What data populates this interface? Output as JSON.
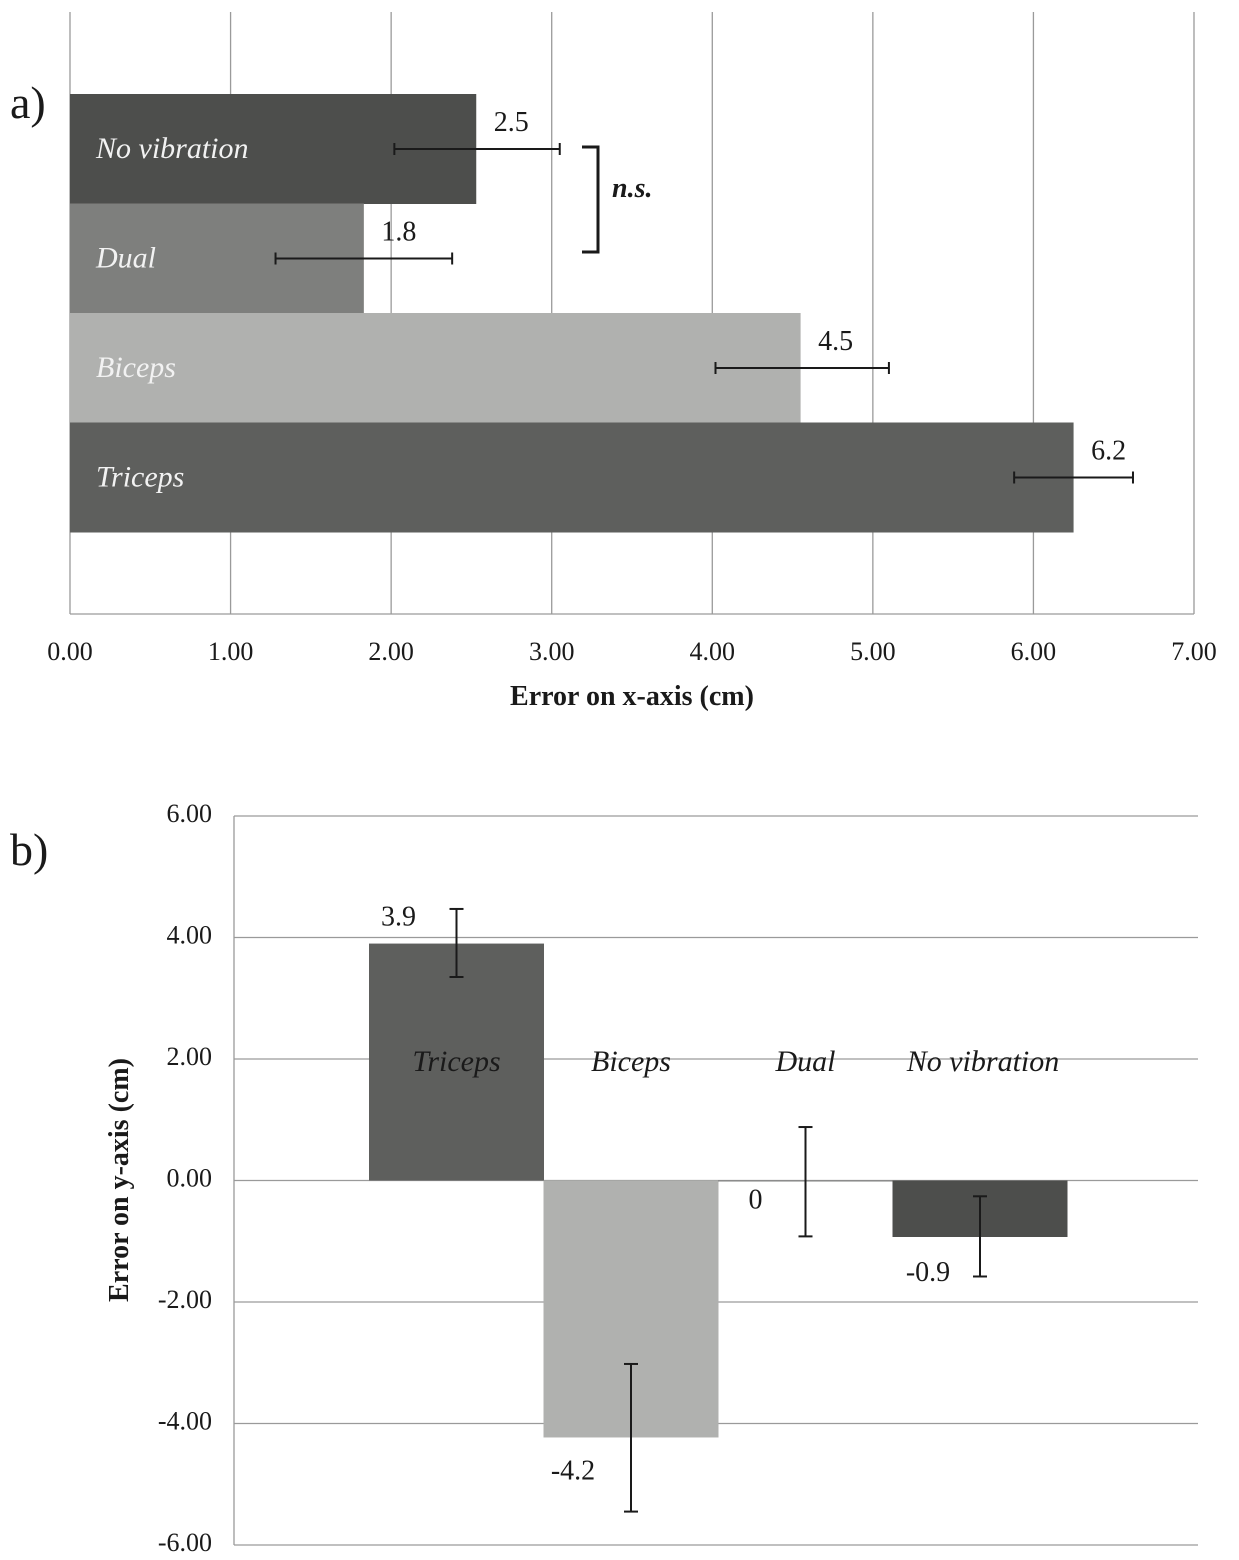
{
  "chart_data": [
    {
      "panel_label": "a)",
      "type": "bar",
      "orientation": "horizontal",
      "xlabel": "Error  on x-axis (cm)",
      "ylabel": "",
      "xlim": [
        0,
        7
      ],
      "tick_values": [
        0,
        1,
        2,
        3,
        4,
        5,
        6,
        7
      ],
      "tick_labels": [
        "0.00",
        "1.00",
        "2.00",
        "3.00",
        "4.00",
        "5.00",
        "6.00",
        "7.00"
      ],
      "grid": true,
      "categories": [
        "No vibration",
        "Dual",
        "Biceps",
        "Triceps"
      ],
      "values": [
        2.53,
        1.83,
        4.55,
        6.25
      ],
      "data_labels": [
        "2.5",
        "1.8",
        "4.5",
        "6.2"
      ],
      "error_low": [
        2.02,
        1.28,
        4.02,
        5.88
      ],
      "error_high": [
        3.05,
        2.38,
        5.1,
        6.62
      ],
      "colors": [
        "#4d4e4c",
        "#7e7f7d",
        "#b0b1af",
        "#5e5f5d"
      ],
      "annotation": "n.s."
    },
    {
      "panel_label": "b)",
      "type": "bar",
      "orientation": "vertical",
      "xlabel": "",
      "ylabel": "Error  on y-axis (cm)",
      "ylim": [
        -6,
        6
      ],
      "tick_values": [
        6,
        4,
        2,
        0,
        -2,
        -4,
        -6
      ],
      "tick_labels": [
        "6.00",
        "4.00",
        "2.00",
        "0.00",
        "-2.00",
        "-4.00",
        "-6.00"
      ],
      "grid": true,
      "categories": [
        "Triceps",
        "Biceps",
        "Dual",
        "No vibration"
      ],
      "values": [
        3.9,
        -4.23,
        0.0,
        -0.93
      ],
      "data_labels": [
        "3.9",
        "-4.2",
        "0",
        "-0.9"
      ],
      "error_low": [
        3.35,
        -5.45,
        -0.92,
        -1.58
      ],
      "error_high": [
        4.47,
        -3.02,
        0.88,
        -0.26
      ],
      "colors": [
        "#5e5f5d",
        "#b0b1af",
        "#7e7f7d",
        "#4d4e4c"
      ]
    }
  ]
}
